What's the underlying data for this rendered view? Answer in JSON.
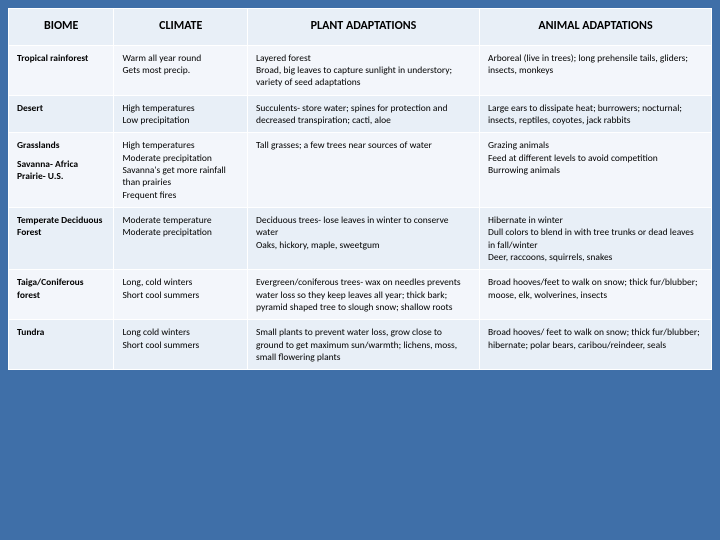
{
  "headers": {
    "biome": "BIOME",
    "climate": "CLIMATE",
    "plant": "PLANT ADAPTATIONS",
    "animal": "ANIMAL ADAPTATIONS"
  },
  "rows": [
    {
      "biome": "Tropical rainforest",
      "biome_sub": "",
      "climate": "Warm all year round\nGets most precip.",
      "plant": "Layered forest\nBroad, big leaves to capture sunlight in understory; variety of seed adaptations",
      "animal": "Arboreal (live in trees); long prehensile tails, gliders; insects, monkeys"
    },
    {
      "biome": "Desert",
      "biome_sub": "",
      "climate": "High temperatures\nLow precipitation",
      "plant": "Succulents- store water; spines for protection and decreased transpiration; cacti, aloe",
      "animal": "Large ears to dissipate heat; burrowers; nocturnal; insects, reptiles, coyotes, jack rabbits"
    },
    {
      "biome": "Grasslands",
      "biome_sub": "Savanna- Africa\nPrairie- U.S.",
      "climate": "High temperatures\nModerate precipitation\nSavanna's get more rainfall than prairies\nFrequent fires",
      "plant": "Tall grasses; a few trees near sources of water",
      "animal": "Grazing animals\nFeed at different levels to avoid competition\nBurrowing animals"
    },
    {
      "biome": "Temperate Deciduous Forest",
      "biome_sub": "",
      "climate": "Moderate temperature\nModerate precipitation",
      "plant": "Deciduous trees- lose leaves in winter to conserve water\nOaks, hickory, maple, sweetgum",
      "animal": "Hibernate in winter\nDull colors to blend in with tree trunks or dead leaves in fall/winter\nDeer, raccoons, squirrels, snakes"
    },
    {
      "biome": "Taiga/Coniferous forest",
      "biome_sub": "",
      "climate": "Long, cold winters\nShort cool summers",
      "plant": "Evergreen/coniferous trees- wax on needles prevents water loss so they keep leaves all year; thick bark; pyramid shaped tree to slough snow; shallow roots",
      "animal": "Broad hooves/feet to walk on snow; thick fur/blubber; moose, elk, wolverines, insects"
    },
    {
      "biome": "Tundra",
      "biome_sub": "",
      "climate": "Long cold winters\nShort cool summers",
      "plant": "Small plants to prevent water loss, grow close to ground to get maximum sun/warmth; lichens, moss, small flowering plants",
      "animal": "Broad hooves/ feet to walk on snow; thick fur/blubber; hibernate; polar bears, caribou/reindeer, seals"
    }
  ],
  "style": {
    "background_color": "#3f6fa8",
    "header_bg": "#e8eff7",
    "row_odd_bg": "#f3f6fb",
    "row_even_bg": "#e8eff7",
    "border_color": "#ffffff",
    "header_fontsize": 12,
    "body_fontsize": 9.5,
    "column_widths_pct": [
      15,
      19,
      33,
      33
    ]
  }
}
